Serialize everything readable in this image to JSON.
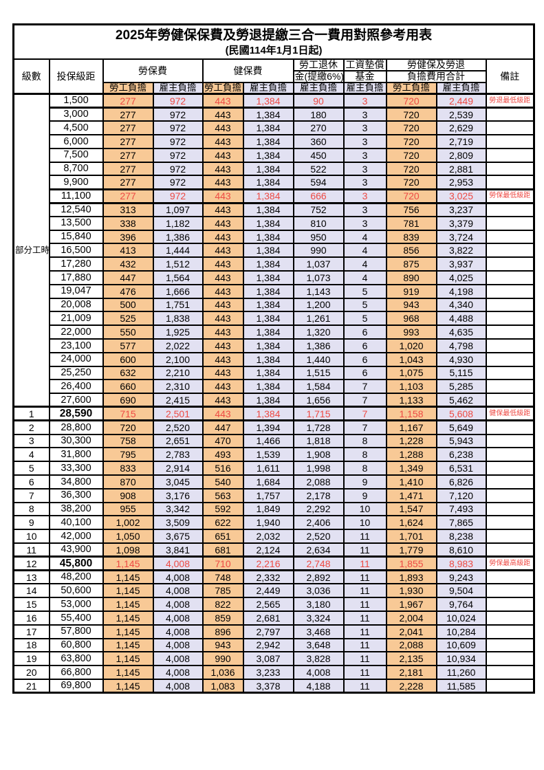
{
  "title": "2025年勞健保保費及勞退提繳三合一費用對照參考用表",
  "subtitle": "(民國114年1月1日起)",
  "colors": {
    "employee_col_bg": "#f8c996",
    "employer_col_bg": "#e2e1f2",
    "highlight_text": "#ee4a44",
    "border": "#000000"
  },
  "header": {
    "level": "級數",
    "bracket": "投保級距",
    "labor": "勞保費",
    "health": "健保費",
    "pension_line1": "勞工退休",
    "pension_line2": "金(提繳6%)",
    "wage_fund_line1": "工資墊償",
    "wage_fund_line2": "基金",
    "total_line1": "勞健保及勞退",
    "total_line2": "負擔費用合計",
    "note": "備註",
    "employee": "勞工負擔",
    "employer": "雇主負擔"
  },
  "table": {
    "part_time_label": "部分工時",
    "part_time_row_count": 23,
    "value_columns": [
      "labor_employee",
      "labor_employer",
      "health_employee",
      "health_employer",
      "pension_employer",
      "wage_fund_employer",
      "total_employee",
      "total_employer"
    ],
    "rows": [
      {
        "level": "",
        "bracket": "1,500",
        "values": [
          "277",
          "972",
          "443",
          "1,384",
          "90",
          "3",
          "720",
          "2,449"
        ],
        "note": "勞退最低級距",
        "highlight": true
      },
      {
        "level": "",
        "bracket": "3,000",
        "values": [
          "277",
          "972",
          "443",
          "1,384",
          "180",
          "3",
          "720",
          "2,539"
        ]
      },
      {
        "level": "",
        "bracket": "4,500",
        "values": [
          "277",
          "972",
          "443",
          "1,384",
          "270",
          "3",
          "720",
          "2,629"
        ]
      },
      {
        "level": "",
        "bracket": "6,000",
        "values": [
          "277",
          "972",
          "443",
          "1,384",
          "360",
          "3",
          "720",
          "2,719"
        ]
      },
      {
        "level": "",
        "bracket": "7,500",
        "values": [
          "277",
          "972",
          "443",
          "1,384",
          "450",
          "3",
          "720",
          "2,809"
        ]
      },
      {
        "level": "",
        "bracket": "8,700",
        "values": [
          "277",
          "972",
          "443",
          "1,384",
          "522",
          "3",
          "720",
          "2,881"
        ]
      },
      {
        "level": "",
        "bracket": "9,900",
        "values": [
          "277",
          "972",
          "443",
          "1,384",
          "594",
          "3",
          "720",
          "2,953"
        ]
      },
      {
        "level": "",
        "bracket": "11,100",
        "values": [
          "277",
          "972",
          "443",
          "1,384",
          "666",
          "3",
          "720",
          "3,025"
        ],
        "note": "勞保最低級距",
        "highlight": true
      },
      {
        "level": "",
        "bracket": "12,540",
        "values": [
          "313",
          "1,097",
          "443",
          "1,384",
          "752",
          "3",
          "756",
          "3,237"
        ]
      },
      {
        "level": "",
        "bracket": "13,500",
        "values": [
          "338",
          "1,182",
          "443",
          "1,384",
          "810",
          "3",
          "781",
          "3,379"
        ]
      },
      {
        "level": "",
        "bracket": "15,840",
        "values": [
          "396",
          "1,386",
          "443",
          "1,384",
          "950",
          "4",
          "839",
          "3,724"
        ]
      },
      {
        "level": "",
        "bracket": "16,500",
        "values": [
          "413",
          "1,444",
          "443",
          "1,384",
          "990",
          "4",
          "856",
          "3,822"
        ]
      },
      {
        "level": "",
        "bracket": "17,280",
        "values": [
          "432",
          "1,512",
          "443",
          "1,384",
          "1,037",
          "4",
          "875",
          "3,937"
        ]
      },
      {
        "level": "",
        "bracket": "17,880",
        "values": [
          "447",
          "1,564",
          "443",
          "1,384",
          "1,073",
          "4",
          "890",
          "4,025"
        ]
      },
      {
        "level": "",
        "bracket": "19,047",
        "values": [
          "476",
          "1,666",
          "443",
          "1,384",
          "1,143",
          "5",
          "919",
          "4,198"
        ]
      },
      {
        "level": "",
        "bracket": "20,008",
        "values": [
          "500",
          "1,751",
          "443",
          "1,384",
          "1,200",
          "5",
          "943",
          "4,340"
        ]
      },
      {
        "level": "",
        "bracket": "21,009",
        "values": [
          "525",
          "1,838",
          "443",
          "1,384",
          "1,261",
          "5",
          "968",
          "4,488"
        ]
      },
      {
        "level": "",
        "bracket": "22,000",
        "values": [
          "550",
          "1,925",
          "443",
          "1,384",
          "1,320",
          "6",
          "993",
          "4,635"
        ]
      },
      {
        "level": "",
        "bracket": "23,100",
        "values": [
          "577",
          "2,022",
          "443",
          "1,384",
          "1,386",
          "6",
          "1,020",
          "4,798"
        ]
      },
      {
        "level": "",
        "bracket": "24,000",
        "values": [
          "600",
          "2,100",
          "443",
          "1,384",
          "1,440",
          "6",
          "1,043",
          "4,930"
        ]
      },
      {
        "level": "",
        "bracket": "25,250",
        "values": [
          "632",
          "2,210",
          "443",
          "1,384",
          "1,515",
          "6",
          "1,075",
          "5,115"
        ]
      },
      {
        "level": "",
        "bracket": "26,400",
        "values": [
          "660",
          "2,310",
          "443",
          "1,384",
          "1,584",
          "7",
          "1,103",
          "5,285"
        ]
      },
      {
        "level": "",
        "bracket": "27,600",
        "values": [
          "690",
          "2,415",
          "443",
          "1,384",
          "1,656",
          "7",
          "1,133",
          "5,462"
        ]
      },
      {
        "level": "1",
        "bracket": "28,590",
        "values": [
          "715",
          "2,501",
          "443",
          "1,384",
          "1,715",
          "7",
          "1,158",
          "5,608"
        ],
        "note": "健保最低級距",
        "highlight": true,
        "bold": true
      },
      {
        "level": "2",
        "bracket": "28,800",
        "values": [
          "720",
          "2,520",
          "447",
          "1,394",
          "1,728",
          "7",
          "1,167",
          "5,649"
        ]
      },
      {
        "level": "3",
        "bracket": "30,300",
        "values": [
          "758",
          "2,651",
          "470",
          "1,466",
          "1,818",
          "8",
          "1,228",
          "5,943"
        ]
      },
      {
        "level": "4",
        "bracket": "31,800",
        "values": [
          "795",
          "2,783",
          "493",
          "1,539",
          "1,908",
          "8",
          "1,288",
          "6,238"
        ]
      },
      {
        "level": "5",
        "bracket": "33,300",
        "values": [
          "833",
          "2,914",
          "516",
          "1,611",
          "1,998",
          "8",
          "1,349",
          "6,531"
        ]
      },
      {
        "level": "6",
        "bracket": "34,800",
        "values": [
          "870",
          "3,045",
          "540",
          "1,684",
          "2,088",
          "9",
          "1,410",
          "6,826"
        ]
      },
      {
        "level": "7",
        "bracket": "36,300",
        "values": [
          "908",
          "3,176",
          "563",
          "1,757",
          "2,178",
          "9",
          "1,471",
          "7,120"
        ]
      },
      {
        "level": "8",
        "bracket": "38,200",
        "values": [
          "955",
          "3,342",
          "592",
          "1,849",
          "2,292",
          "10",
          "1,547",
          "7,493"
        ]
      },
      {
        "level": "9",
        "bracket": "40,100",
        "values": [
          "1,002",
          "3,509",
          "622",
          "1,940",
          "2,406",
          "10",
          "1,624",
          "7,865"
        ]
      },
      {
        "level": "10",
        "bracket": "42,000",
        "values": [
          "1,050",
          "3,675",
          "651",
          "2,032",
          "2,520",
          "11",
          "1,701",
          "8,238"
        ]
      },
      {
        "level": "11",
        "bracket": "43,900",
        "values": [
          "1,098",
          "3,841",
          "681",
          "2,124",
          "2,634",
          "11",
          "1,779",
          "8,610"
        ]
      },
      {
        "level": "12",
        "bracket": "45,800",
        "values": [
          "1,145",
          "4,008",
          "710",
          "2,216",
          "2,748",
          "11",
          "1,855",
          "8,983"
        ],
        "note": "勞保最高級距",
        "highlight": true,
        "bold": true
      },
      {
        "level": "13",
        "bracket": "48,200",
        "values": [
          "1,145",
          "4,008",
          "748",
          "2,332",
          "2,892",
          "11",
          "1,893",
          "9,243"
        ]
      },
      {
        "level": "14",
        "bracket": "50,600",
        "values": [
          "1,145",
          "4,008",
          "785",
          "2,449",
          "3,036",
          "11",
          "1,930",
          "9,504"
        ]
      },
      {
        "level": "15",
        "bracket": "53,000",
        "values": [
          "1,145",
          "4,008",
          "822",
          "2,565",
          "3,180",
          "11",
          "1,967",
          "9,764"
        ]
      },
      {
        "level": "16",
        "bracket": "55,400",
        "values": [
          "1,145",
          "4,008",
          "859",
          "2,681",
          "3,324",
          "11",
          "2,004",
          "10,024"
        ]
      },
      {
        "level": "17",
        "bracket": "57,800",
        "values": [
          "1,145",
          "4,008",
          "896",
          "2,797",
          "3,468",
          "11",
          "2,041",
          "10,284"
        ]
      },
      {
        "level": "18",
        "bracket": "60,800",
        "values": [
          "1,145",
          "4,008",
          "943",
          "2,942",
          "3,648",
          "11",
          "2,088",
          "10,609"
        ]
      },
      {
        "level": "19",
        "bracket": "63,800",
        "values": [
          "1,145",
          "4,008",
          "990",
          "3,087",
          "3,828",
          "11",
          "2,135",
          "10,934"
        ]
      },
      {
        "level": "20",
        "bracket": "66,800",
        "values": [
          "1,145",
          "4,008",
          "1,036",
          "3,233",
          "4,008",
          "11",
          "2,181",
          "11,260"
        ]
      },
      {
        "level": "21",
        "bracket": "69,800",
        "values": [
          "1,145",
          "4,008",
          "1,083",
          "3,378",
          "4,188",
          "11",
          "2,228",
          "11,585"
        ]
      }
    ]
  }
}
